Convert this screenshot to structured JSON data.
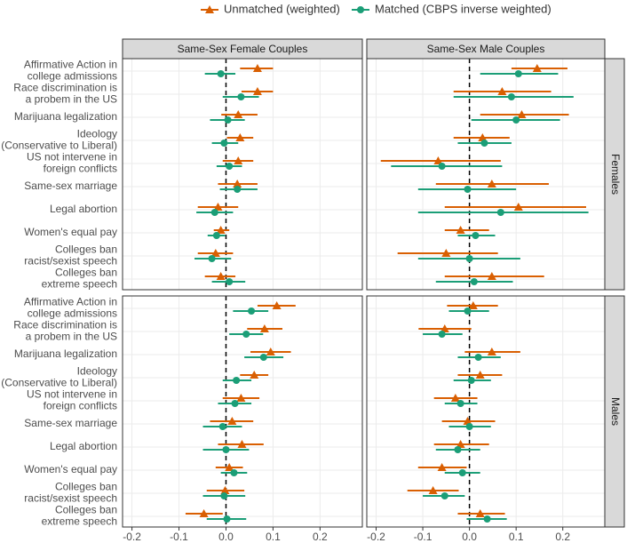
{
  "chart_data": {
    "type": "dot",
    "series": [
      {
        "name": "Unmatched (weighted)",
        "color": "#d95f02",
        "marker": "triangle"
      },
      {
        "name": "Matched (CBPS inverse weighted)",
        "color": "#1b9e77",
        "marker": "circle"
      }
    ],
    "columns": [
      "Same-Sex Female Couples",
      "Same-Sex Male Couples"
    ],
    "rows": [
      "Females",
      "Males"
    ],
    "categories": [
      [
        "Affirmative Action in",
        "college admissions"
      ],
      [
        "Race discrimination is",
        "a probem in the US"
      ],
      [
        "Marijuana legalization"
      ],
      [
        "Ideology",
        "(Conservative to Liberal)"
      ],
      [
        "US not intervene in",
        "foreign conflicts"
      ],
      [
        "Same-sex marriage"
      ],
      [
        "Legal abortion"
      ],
      [
        "Women's equal pay"
      ],
      [
        "Colleges ban",
        "racist/sexist speech"
      ],
      [
        "Colleges ban",
        "extreme speech"
      ]
    ],
    "xlim": [
      -0.22,
      0.29
    ],
    "xticks": [
      -0.2,
      -0.1,
      {
        "value": 0,
        "label": "0.0"
      },
      0.1,
      0.2
    ],
    "grid": true,
    "panels": [
      {
        "values": [
          [
            0.067,
            0.067,
            0.026,
            0.03,
            0.026,
            0.024,
            -0.017,
            -0.011,
            -0.022,
            -0.011
          ],
          [
            -0.011,
            0.032,
            0.004,
            -0.004,
            0.007,
            0.024,
            -0.024,
            -0.02,
            -0.03,
            0.007
          ]
        ],
        "lower": [
          [
            0.03,
            0.033,
            -0.01,
            0.002,
            -0.007,
            -0.017,
            -0.06,
            -0.026,
            -0.06,
            -0.045
          ],
          [
            -0.045,
            -0.007,
            -0.034,
            -0.03,
            -0.02,
            -0.013,
            -0.063,
            -0.039,
            -0.067,
            -0.03
          ]
        ],
        "upper": [
          [
            0.1,
            0.1,
            0.067,
            0.058,
            0.058,
            0.067,
            0.026,
            0.007,
            0.015,
            0.02
          ],
          [
            0.02,
            0.07,
            0.04,
            0.026,
            0.034,
            0.067,
            0.015,
            -0.002,
            0.011,
            0.041
          ]
        ]
      },
      {
        "values": [
          [
            0.145,
            0.07,
            0.112,
            0.028,
            -0.067,
            0.048,
            0.105,
            -0.019,
            -0.05,
            0.048
          ],
          [
            0.105,
            0.09,
            0.1,
            0.032,
            -0.059,
            -0.004,
            0.067,
            0.013,
            0.0,
            0.01
          ]
        ],
        "lower": [
          [
            0.09,
            -0.034,
            0.023,
            -0.034,
            -0.19,
            -0.072,
            -0.053,
            -0.053,
            -0.154,
            -0.053
          ],
          [
            0.023,
            -0.034,
            0.004,
            -0.025,
            -0.168,
            -0.11,
            -0.11,
            -0.025,
            -0.11,
            -0.072
          ]
        ],
        "upper": [
          [
            0.21,
            0.175,
            0.213,
            0.086,
            0.067,
            0.17,
            0.25,
            0.042,
            0.061,
            0.16
          ],
          [
            0.19,
            0.223,
            0.194,
            0.09,
            0.07,
            0.1,
            0.255,
            0.055,
            0.109,
            0.093
          ]
        ]
      },
      {
        "values": [
          [
            0.108,
            0.082,
            0.095,
            0.06,
            0.032,
            0.013,
            0.034,
            0.007,
            -0.002,
            -0.047
          ],
          [
            0.054,
            0.043,
            0.08,
            0.022,
            0.019,
            -0.007,
            0.0,
            0.017,
            -0.004,
            0.002
          ]
        ],
        "lower": [
          [
            0.067,
            0.045,
            0.052,
            0.03,
            -0.007,
            -0.034,
            -0.017,
            -0.022,
            -0.041,
            -0.086
          ],
          [
            0.015,
            0.007,
            0.039,
            -0.007,
            -0.017,
            -0.049,
            -0.049,
            -0.011,
            -0.049,
            -0.041
          ]
        ],
        "upper": [
          [
            0.148,
            0.12,
            0.138,
            0.09,
            0.071,
            0.058,
            0.08,
            0.036,
            0.039,
            -0.007
          ],
          [
            0.09,
            0.079,
            0.122,
            0.054,
            0.054,
            0.034,
            0.049,
            0.045,
            0.041,
            0.043
          ]
        ]
      },
      {
        "values": [
          [
            0.008,
            -0.053,
            0.048,
            0.023,
            -0.03,
            -0.004,
            -0.019,
            -0.059,
            -0.078,
            0.023
          ],
          [
            -0.004,
            -0.059,
            0.019,
            0.004,
            -0.019,
            0.0,
            -0.025,
            -0.015,
            -0.053,
            0.038
          ]
        ],
        "lower": [
          [
            -0.048,
            -0.109,
            -0.01,
            -0.025,
            -0.076,
            -0.059,
            -0.076,
            -0.11,
            -0.133,
            -0.025
          ],
          [
            -0.044,
            -0.1,
            -0.025,
            -0.034,
            -0.053,
            -0.044,
            -0.072,
            -0.053,
            -0.1,
            -0.006
          ]
        ],
        "upper": [
          [
            0.061,
            0.004,
            0.109,
            0.07,
            0.017,
            0.055,
            0.042,
            -0.006,
            -0.023,
            0.076
          ],
          [
            0.042,
            -0.015,
            0.067,
            0.046,
            0.017,
            0.046,
            0.023,
            0.023,
            -0.01,
            0.08
          ]
        ]
      }
    ]
  }
}
